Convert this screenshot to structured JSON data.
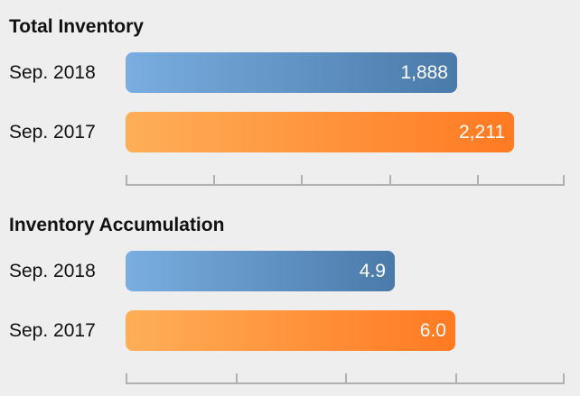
{
  "chart_data": [
    {
      "type": "bar",
      "orientation": "horizontal",
      "title": "Total Inventory",
      "categories": [
        "Sep. 2018",
        "Sep. 2017"
      ],
      "values": [
        1888,
        2211
      ],
      "value_labels": [
        "1,888",
        "2,211"
      ],
      "colors": [
        "#5b8fc8",
        "#ff8c38"
      ],
      "xlim": [
        0,
        2500
      ],
      "tick_count": 6
    },
    {
      "type": "bar",
      "orientation": "horizontal",
      "title": "Inventory Accumulation",
      "categories": [
        "Sep. 2018",
        "Sep. 2017"
      ],
      "values": [
        4.9,
        6.0
      ],
      "value_labels": [
        "4.9",
        "6.0"
      ],
      "colors": [
        "#5b8fc8",
        "#ff8c38"
      ],
      "xlim": [
        0,
        8
      ],
      "tick_count": 5
    }
  ]
}
